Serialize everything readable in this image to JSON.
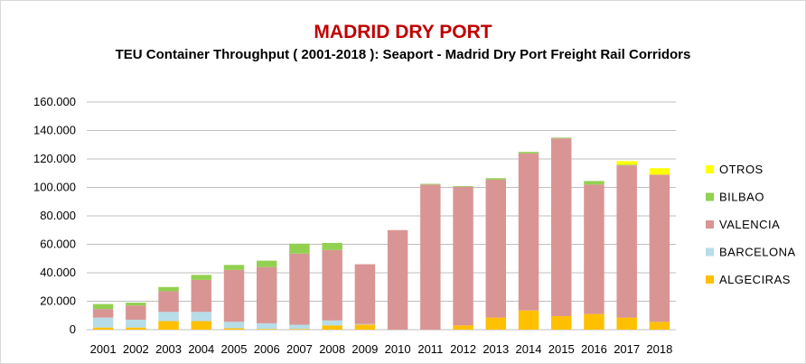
{
  "chart_data": {
    "type": "bar",
    "stacked": true,
    "title": "MADRID DRY PORT",
    "subtitle": "TEU Container Throughput ( 2001-2018 ): Seaport - Madrid Dry Port Freight Rail Corridors",
    "xlabel": "",
    "ylabel": "",
    "ylim": [
      0,
      160000
    ],
    "yticks": [
      0,
      20000,
      40000,
      60000,
      80000,
      100000,
      120000,
      140000,
      160000
    ],
    "ytick_labels": [
      "0",
      "20.000",
      "40.000",
      "60.000",
      "80.000",
      "100.000",
      "120.000",
      "140.000",
      "160.000"
    ],
    "grid": true,
    "legend_position": "right",
    "categories": [
      "2001",
      "2002",
      "2003",
      "2004",
      "2005",
      "2006",
      "2007",
      "2008",
      "2009",
      "2010",
      "2011",
      "2012",
      "2013",
      "2014",
      "2015",
      "2016",
      "2017",
      "2018"
    ],
    "series": [
      {
        "name": "ALGECIRAS",
        "color": "#ffc000",
        "values": [
          1500,
          1500,
          6000,
          6000,
          1000,
          500,
          500,
          3000,
          3500,
          0,
          0,
          3000,
          8500,
          13500,
          9500,
          11000,
          8500,
          5500
        ]
      },
      {
        "name": "BARCELONA",
        "color": "#b7dde8",
        "values": [
          7000,
          5500,
          6500,
          6500,
          4500,
          4000,
          3000,
          3500,
          500,
          0,
          0,
          0,
          0,
          0,
          0,
          0,
          0,
          0
        ]
      },
      {
        "name": "VALENCIA",
        "color": "#d99594",
        "values": [
          6000,
          10000,
          14500,
          22500,
          36500,
          39500,
          50000,
          49500,
          42000,
          70000,
          102000,
          97500,
          97000,
          110500,
          125000,
          91000,
          107000,
          103500
        ]
      },
      {
        "name": "BILBAO",
        "color": "#92d050",
        "values": [
          3500,
          2000,
          3000,
          3500,
          3500,
          4500,
          7000,
          5000,
          0,
          0,
          500,
          500,
          1000,
          1000,
          500,
          2500,
          500,
          0
        ]
      },
      {
        "name": "OTROS",
        "color": "#ffff00",
        "values": [
          0,
          0,
          0,
          0,
          0,
          0,
          0,
          0,
          0,
          0,
          0,
          0,
          0,
          0,
          0,
          0,
          2500,
          4500
        ]
      }
    ]
  }
}
